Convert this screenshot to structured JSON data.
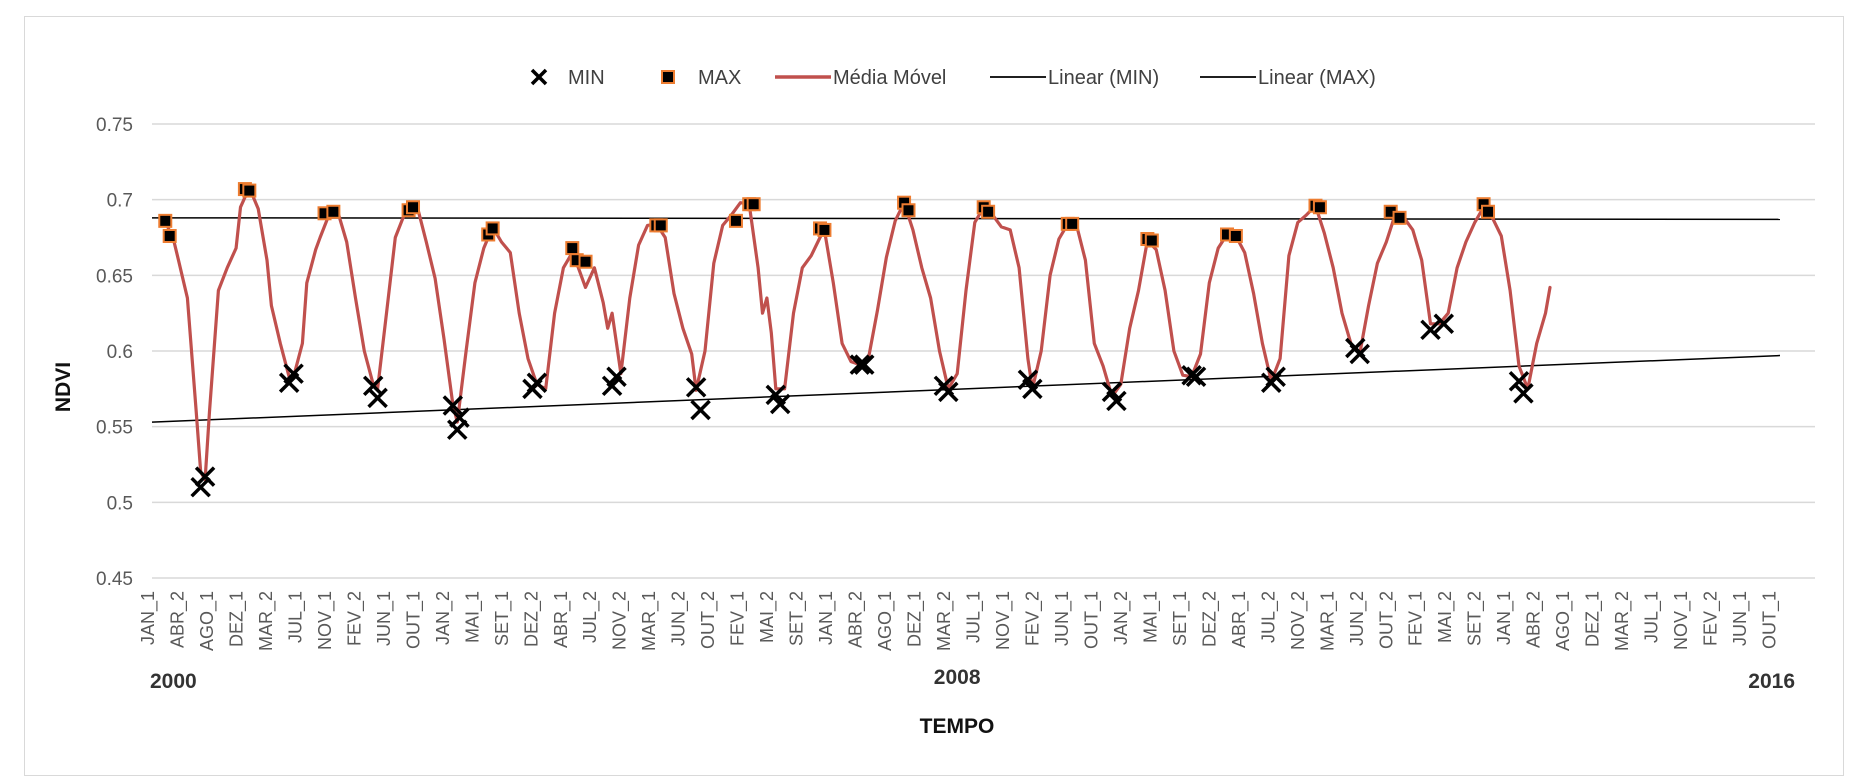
{
  "chart_data": {
    "type": "line",
    "xlabel": "TEMPO",
    "ylabel": "NDVI",
    "ylim": [
      0.45,
      0.75
    ],
    "yticks": [
      "0.45",
      "0.5",
      "0.55",
      "0.6",
      "0.65",
      "0.7",
      "0.75"
    ],
    "grid": "horizontal",
    "legend_position": "top",
    "x_tick_labels": [
      "JAN_1",
      "ABR_2",
      "AGO_1",
      "DEZ_1",
      "MAR_2",
      "JUL_1",
      "NOV_1",
      "FEV_2",
      "JUN_1",
      "OUT_1",
      "JAN_2",
      "MAI_1",
      "SET_1",
      "DEZ_2",
      "ABR_1",
      "JUL_2",
      "NOV_2",
      "MAR_1",
      "JUN_2",
      "OUT_2",
      "FEV_1",
      "MAI_2",
      "SET_2",
      "JAN_1",
      "ABR_2",
      "AGO_1",
      "DEZ_1",
      "MAR_2",
      "JUL_1",
      "NOV_1",
      "FEV_2",
      "JUN_1",
      "OUT_1",
      "JAN_2",
      "MAI_1",
      "SET_1",
      "DEZ_2",
      "ABR_1",
      "JUL_2",
      "NOV_2",
      "MAR_1",
      "JUN_2",
      "OUT_2",
      "FEV_1",
      "MAI_2",
      "SET_2",
      "JAN_1",
      "ABR_2",
      "AGO_1",
      "DEZ_1",
      "MAR_2",
      "JUL_1",
      "NOV_1",
      "FEV_2",
      "JUN_1",
      "OUT_1"
    ],
    "year_labels": [
      {
        "text": "2000",
        "x": 0
      },
      {
        "text": "2008",
        "x": 182
      },
      {
        "text": "2016",
        "x": 368
      }
    ],
    "x_range": [
      0,
      368
    ],
    "legend": [
      {
        "name": "MIN",
        "marker": "x",
        "color": "#000000"
      },
      {
        "name": "MAX",
        "marker": "square",
        "color": "#000000",
        "edge": "#ed7d31"
      },
      {
        "name": "Média Móvel",
        "marker": "line",
        "color": "#c0504d"
      },
      {
        "name": "Linear (MIN)",
        "marker": "line",
        "color": "#000000"
      },
      {
        "name": "Linear (MAX)",
        "marker": "line",
        "color": "#000000"
      }
    ],
    "series": [
      {
        "name": "MIN",
        "points": [
          [
            11,
            0.51
          ],
          [
            12,
            0.517
          ],
          [
            31,
            0.579
          ],
          [
            32,
            0.585
          ],
          [
            50,
            0.577
          ],
          [
            51,
            0.569
          ],
          [
            68,
            0.564
          ],
          [
            69,
            0.548
          ],
          [
            69.5,
            0.556
          ],
          [
            86,
            0.575
          ],
          [
            87,
            0.579
          ],
          [
            104,
            0.577
          ],
          [
            105,
            0.583
          ],
          [
            123,
            0.576
          ],
          [
            124,
            0.561
          ],
          [
            141,
            0.571
          ],
          [
            142,
            0.565
          ],
          [
            160,
            0.591
          ],
          [
            161,
            0.591
          ],
          [
            179,
            0.577
          ],
          [
            180,
            0.573
          ],
          [
            198,
            0.581
          ],
          [
            199,
            0.575
          ],
          [
            217,
            0.573
          ],
          [
            218,
            0.567
          ],
          [
            235,
            0.584
          ],
          [
            236,
            0.583
          ],
          [
            253,
            0.579
          ],
          [
            254,
            0.583
          ],
          [
            272,
            0.602
          ],
          [
            273,
            0.598
          ],
          [
            289,
            0.614
          ],
          [
            292,
            0.618
          ],
          [
            309,
            0.58
          ],
          [
            310,
            0.572
          ]
        ]
      },
      {
        "name": "MAX",
        "points": [
          [
            3,
            0.686
          ],
          [
            4,
            0.676
          ],
          [
            21,
            0.707
          ],
          [
            22,
            0.706
          ],
          [
            39,
            0.691
          ],
          [
            41,
            0.692
          ],
          [
            58,
            0.693
          ],
          [
            59,
            0.695
          ],
          [
            76,
            0.677
          ],
          [
            77,
            0.681
          ],
          [
            95,
            0.668
          ],
          [
            96,
            0.66
          ],
          [
            98,
            0.659
          ],
          [
            114,
            0.683
          ],
          [
            115,
            0.683
          ],
          [
            132,
            0.686
          ],
          [
            135,
            0.697
          ],
          [
            136,
            0.697
          ],
          [
            151,
            0.681
          ],
          [
            152,
            0.68
          ],
          [
            170,
            0.698
          ],
          [
            171,
            0.693
          ],
          [
            188,
            0.695
          ],
          [
            189,
            0.692
          ],
          [
            207,
            0.684
          ],
          [
            208,
            0.684
          ],
          [
            225,
            0.674
          ],
          [
            226,
            0.673
          ],
          [
            243,
            0.677
          ],
          [
            245,
            0.676
          ],
          [
            263,
            0.696
          ],
          [
            264,
            0.695
          ],
          [
            280,
            0.692
          ],
          [
            282,
            0.688
          ],
          [
            301,
            0.697
          ],
          [
            302,
            0.692
          ]
        ]
      },
      {
        "name": "Média Móvel",
        "points": [
          [
            3,
            0.686
          ],
          [
            5,
            0.672
          ],
          [
            6,
            0.66
          ],
          [
            8,
            0.635
          ],
          [
            10,
            0.56
          ],
          [
            11,
            0.52
          ],
          [
            12,
            0.515
          ],
          [
            13,
            0.56
          ],
          [
            15,
            0.64
          ],
          [
            17,
            0.655
          ],
          [
            19,
            0.668
          ],
          [
            20,
            0.695
          ],
          [
            22,
            0.708
          ],
          [
            24,
            0.694
          ],
          [
            26,
            0.66
          ],
          [
            27,
            0.63
          ],
          [
            29,
            0.605
          ],
          [
            31,
            0.583
          ],
          [
            32,
            0.583
          ],
          [
            34,
            0.605
          ],
          [
            35,
            0.645
          ],
          [
            37,
            0.667
          ],
          [
            38,
            0.675
          ],
          [
            40,
            0.69
          ],
          [
            42,
            0.692
          ],
          [
            44,
            0.672
          ],
          [
            46,
            0.635
          ],
          [
            48,
            0.6
          ],
          [
            50,
            0.578
          ],
          [
            51,
            0.575
          ],
          [
            53,
            0.625
          ],
          [
            55,
            0.675
          ],
          [
            57,
            0.69
          ],
          [
            58,
            0.693
          ],
          [
            60,
            0.695
          ],
          [
            62,
            0.672
          ],
          [
            64,
            0.648
          ],
          [
            66,
            0.608
          ],
          [
            68,
            0.565
          ],
          [
            69,
            0.553
          ],
          [
            71,
            0.6
          ],
          [
            73,
            0.645
          ],
          [
            75,
            0.668
          ],
          [
            77,
            0.682
          ],
          [
            79,
            0.672
          ],
          [
            81,
            0.665
          ],
          [
            83,
            0.625
          ],
          [
            85,
            0.595
          ],
          [
            87,
            0.578
          ],
          [
            89,
            0.575
          ],
          [
            91,
            0.625
          ],
          [
            93,
            0.655
          ],
          [
            95,
            0.665
          ],
          [
            96,
            0.658
          ],
          [
            98,
            0.642
          ],
          [
            100,
            0.655
          ],
          [
            102,
            0.632
          ],
          [
            103,
            0.615
          ],
          [
            104,
            0.625
          ],
          [
            105,
            0.605
          ],
          [
            106,
            0.585
          ],
          [
            108,
            0.635
          ],
          [
            110,
            0.67
          ],
          [
            112,
            0.683
          ],
          [
            114,
            0.684
          ],
          [
            116,
            0.675
          ],
          [
            118,
            0.638
          ],
          [
            120,
            0.615
          ],
          [
            122,
            0.598
          ],
          [
            123,
            0.574
          ],
          [
            125,
            0.6
          ],
          [
            127,
            0.658
          ],
          [
            129,
            0.683
          ],
          [
            131,
            0.69
          ],
          [
            133,
            0.698
          ],
          [
            135,
            0.697
          ],
          [
            137,
            0.655
          ],
          [
            138,
            0.625
          ],
          [
            139,
            0.635
          ],
          [
            140,
            0.612
          ],
          [
            141,
            0.575
          ],
          [
            143,
            0.575
          ],
          [
            145,
            0.625
          ],
          [
            147,
            0.655
          ],
          [
            149,
            0.663
          ],
          [
            151,
            0.675
          ],
          [
            152,
            0.68
          ],
          [
            154,
            0.645
          ],
          [
            156,
            0.605
          ],
          [
            158,
            0.593
          ],
          [
            160,
            0.591
          ],
          [
            162,
            0.596
          ],
          [
            164,
            0.627
          ],
          [
            166,
            0.662
          ],
          [
            168,
            0.686
          ],
          [
            170,
            0.698
          ],
          [
            172,
            0.68
          ],
          [
            174,
            0.655
          ],
          [
            176,
            0.635
          ],
          [
            178,
            0.6
          ],
          [
            180,
            0.575
          ],
          [
            182,
            0.585
          ],
          [
            184,
            0.64
          ],
          [
            186,
            0.685
          ],
          [
            188,
            0.695
          ],
          [
            190,
            0.69
          ],
          [
            192,
            0.682
          ],
          [
            194,
            0.68
          ],
          [
            196,
            0.655
          ],
          [
            198,
            0.595
          ],
          [
            199,
            0.575
          ],
          [
            201,
            0.6
          ],
          [
            203,
            0.65
          ],
          [
            205,
            0.674
          ],
          [
            207,
            0.684
          ],
          [
            209,
            0.683
          ],
          [
            211,
            0.66
          ],
          [
            213,
            0.605
          ],
          [
            215,
            0.59
          ],
          [
            217,
            0.57
          ],
          [
            219,
            0.578
          ],
          [
            221,
            0.615
          ],
          [
            223,
            0.64
          ],
          [
            225,
            0.673
          ],
          [
            227,
            0.667
          ],
          [
            229,
            0.64
          ],
          [
            231,
            0.6
          ],
          [
            233,
            0.584
          ],
          [
            235,
            0.583
          ],
          [
            237,
            0.598
          ],
          [
            239,
            0.645
          ],
          [
            241,
            0.668
          ],
          [
            243,
            0.677
          ],
          [
            245,
            0.676
          ],
          [
            247,
            0.665
          ],
          [
            249,
            0.638
          ],
          [
            251,
            0.605
          ],
          [
            253,
            0.58
          ],
          [
            255,
            0.595
          ],
          [
            257,
            0.663
          ],
          [
            259,
            0.685
          ],
          [
            261,
            0.69
          ],
          [
            263,
            0.696
          ],
          [
            265,
            0.678
          ],
          [
            267,
            0.655
          ],
          [
            269,
            0.625
          ],
          [
            271,
            0.605
          ],
          [
            273,
            0.598
          ],
          [
            275,
            0.63
          ],
          [
            277,
            0.658
          ],
          [
            279,
            0.672
          ],
          [
            281,
            0.69
          ],
          [
            283,
            0.688
          ],
          [
            285,
            0.68
          ],
          [
            287,
            0.66
          ],
          [
            289,
            0.618
          ],
          [
            291,
            0.618
          ],
          [
            293,
            0.625
          ],
          [
            295,
            0.655
          ],
          [
            297,
            0.672
          ],
          [
            299,
            0.685
          ],
          [
            301,
            0.695
          ],
          [
            303,
            0.688
          ],
          [
            305,
            0.676
          ],
          [
            307,
            0.64
          ],
          [
            309,
            0.59
          ],
          [
            311,
            0.575
          ],
          [
            313,
            0.605
          ],
          [
            315,
            0.625
          ],
          [
            316,
            0.642
          ]
        ]
      },
      {
        "name": "Linear (MIN)",
        "points": [
          [
            0,
            0.553
          ],
          [
            368,
            0.597
          ]
        ]
      },
      {
        "name": "Linear (MAX)",
        "points": [
          [
            0,
            0.688
          ],
          [
            368,
            0.687
          ]
        ]
      }
    ]
  }
}
